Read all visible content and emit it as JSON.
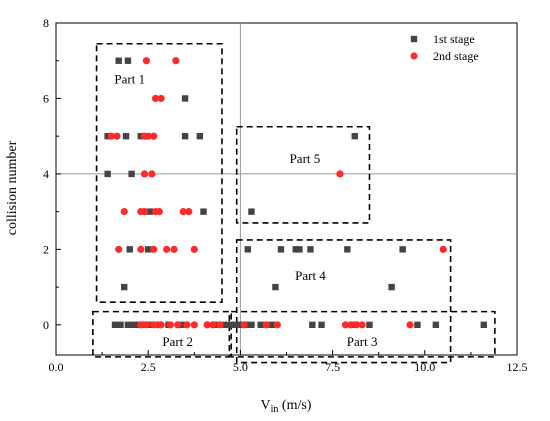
{
  "chart_data": {
    "type": "scatter",
    "title": "",
    "xlabel": "V",
    "xlabel_sub": "in",
    "xlabel_unit": " (m/s)",
    "ylabel": "collision number",
    "xlim": [
      0,
      12.5
    ],
    "ylim": [
      -0.8,
      8
    ],
    "xticks": [
      0,
      2.5,
      5,
      7.5,
      10,
      12.5
    ],
    "xtick_labels": [
      "0.0",
      "2.5",
      "5.0",
      "7.5",
      "10.0",
      "12.5"
    ],
    "yticks": [
      0,
      2,
      4,
      6,
      8
    ],
    "ytick_labels": [
      "0",
      "2",
      "4",
      "6",
      "8"
    ],
    "reference_lines": {
      "x": 5,
      "y": 4
    },
    "legend_position": "top-right",
    "series": [
      {
        "name": "1st stage",
        "marker": "square",
        "color": "#444444",
        "points": [
          [
            1.7,
            7
          ],
          [
            1.95,
            7
          ],
          [
            3.5,
            6
          ],
          [
            1.4,
            5
          ],
          [
            1.9,
            5
          ],
          [
            2.3,
            5
          ],
          [
            3.5,
            5
          ],
          [
            3.9,
            5
          ],
          [
            1.4,
            4
          ],
          [
            2.05,
            4
          ],
          [
            2.55,
            3
          ],
          [
            4.0,
            3
          ],
          [
            2.0,
            2
          ],
          [
            2.5,
            2
          ],
          [
            1.85,
            1
          ],
          [
            1.6,
            0
          ],
          [
            1.75,
            0
          ],
          [
            1.95,
            0
          ],
          [
            2.1,
            0
          ],
          [
            2.25,
            0
          ],
          [
            2.4,
            0
          ],
          [
            2.55,
            0
          ],
          [
            3.05,
            0
          ],
          [
            3.4,
            0
          ],
          [
            4.3,
            0
          ],
          [
            4.6,
            0
          ],
          [
            4.75,
            0
          ],
          [
            8.1,
            5
          ],
          [
            5.3,
            3
          ],
          [
            5.2,
            2
          ],
          [
            6.1,
            2
          ],
          [
            6.5,
            2
          ],
          [
            6.6,
            2
          ],
          [
            6.9,
            2
          ],
          [
            7.9,
            2
          ],
          [
            9.4,
            2
          ],
          [
            5.95,
            1
          ],
          [
            9.1,
            1
          ],
          [
            4.85,
            0
          ],
          [
            5.0,
            0
          ],
          [
            5.15,
            0
          ],
          [
            5.3,
            0
          ],
          [
            5.55,
            0
          ],
          [
            5.85,
            0
          ],
          [
            6.95,
            0
          ],
          [
            7.2,
            0
          ],
          [
            8.05,
            0
          ],
          [
            8.5,
            0
          ],
          [
            9.8,
            0
          ],
          [
            10.3,
            0
          ],
          [
            11.6,
            0
          ]
        ]
      },
      {
        "name": "2nd stage",
        "marker": "circle",
        "color": "#ff2a2a",
        "points": [
          [
            2.45,
            7
          ],
          [
            3.25,
            7
          ],
          [
            2.7,
            6
          ],
          [
            2.85,
            6
          ],
          [
            1.5,
            5
          ],
          [
            1.65,
            5
          ],
          [
            2.4,
            5
          ],
          [
            2.5,
            5
          ],
          [
            2.65,
            5
          ],
          [
            2.4,
            4
          ],
          [
            2.6,
            4
          ],
          [
            1.85,
            3
          ],
          [
            2.3,
            3
          ],
          [
            2.4,
            3
          ],
          [
            2.7,
            3
          ],
          [
            2.8,
            3
          ],
          [
            3.45,
            3
          ],
          [
            3.6,
            3
          ],
          [
            1.7,
            2
          ],
          [
            2.3,
            2
          ],
          [
            2.65,
            2
          ],
          [
            3.0,
            2
          ],
          [
            3.2,
            2
          ],
          [
            3.75,
            2
          ],
          [
            2.3,
            0
          ],
          [
            2.45,
            0
          ],
          [
            2.65,
            0
          ],
          [
            2.75,
            0
          ],
          [
            2.85,
            0
          ],
          [
            3.1,
            0
          ],
          [
            3.3,
            0
          ],
          [
            3.55,
            0
          ],
          [
            3.75,
            0
          ],
          [
            4.1,
            0
          ],
          [
            4.25,
            0
          ],
          [
            4.45,
            0
          ],
          [
            7.7,
            4
          ],
          [
            10.5,
            2
          ],
          [
            5.1,
            0
          ],
          [
            5.7,
            0
          ],
          [
            6.0,
            0
          ],
          [
            7.85,
            0
          ],
          [
            8.0,
            0
          ],
          [
            8.15,
            0
          ],
          [
            8.3,
            0
          ],
          [
            9.6,
            0
          ]
        ]
      }
    ],
    "annotations": [
      {
        "label": "Part 1",
        "box": [
          1.1,
          4.5,
          0.6,
          7.45
        ],
        "label_at": [
          2.0,
          6.5
        ]
      },
      {
        "label": "Part 2",
        "box": [
          1.0,
          4.7,
          -0.85,
          0.35
        ],
        "label_at": [
          3.3,
          -0.45
        ]
      },
      {
        "label": "Part 3",
        "box": [
          4.75,
          11.9,
          -0.85,
          0.35
        ],
        "label_at": [
          8.3,
          -0.45
        ]
      },
      {
        "label": "Part 4",
        "box": [
          4.9,
          10.7,
          -1.0,
          2.25
        ],
        "label_at": [
          6.9,
          1.3
        ]
      },
      {
        "label": "Part 5",
        "box": [
          4.9,
          8.5,
          2.7,
          5.25
        ],
        "label_at": [
          6.75,
          4.4
        ]
      }
    ]
  }
}
